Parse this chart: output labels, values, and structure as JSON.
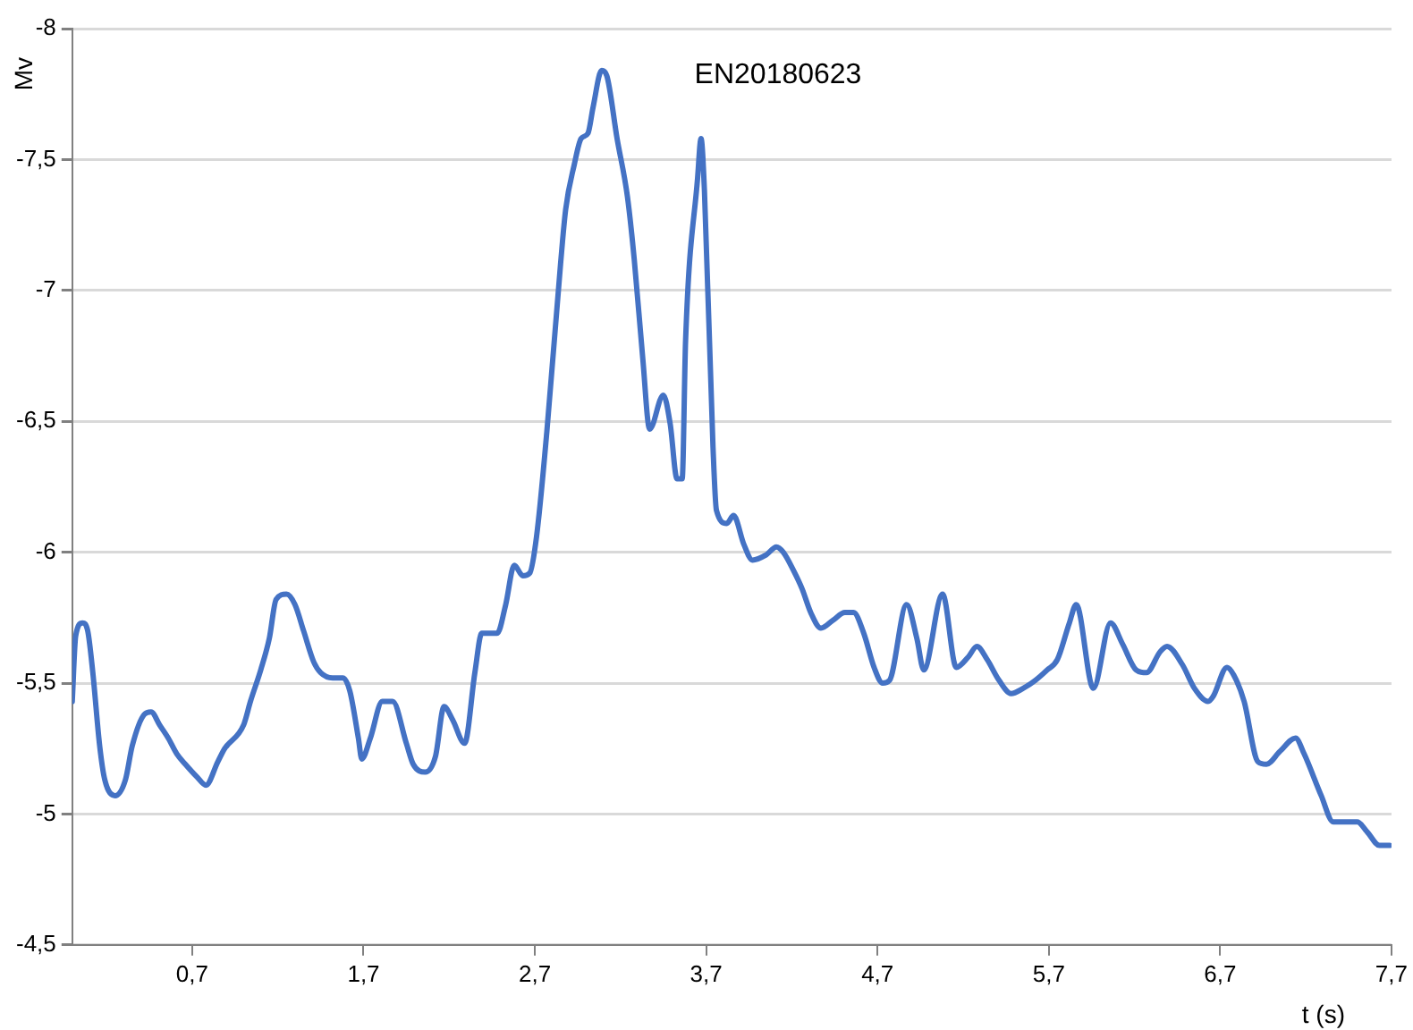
{
  "chart_data": {
    "type": "line",
    "xlabel": "t (s)",
    "ylabel": "Mv",
    "annotations": [
      "EN20180623"
    ],
    "grid": "y",
    "legend": false,
    "marker": "none",
    "line_style": "solid",
    "xlim": [
      0,
      7.7
    ],
    "xticks": [
      {
        "value": 0.7,
        "label": "0,7"
      },
      {
        "value": 1.7,
        "label": "1,7"
      },
      {
        "value": 2.7,
        "label": "2,7"
      },
      {
        "value": 3.7,
        "label": "3,7"
      },
      {
        "value": 4.7,
        "label": "4,7"
      },
      {
        "value": 5.7,
        "label": "5,7"
      },
      {
        "value": 6.7,
        "label": "6,7"
      },
      {
        "value": 7.7,
        "label": "7,7"
      }
    ],
    "ylim": [
      -4.5,
      -8
    ],
    "yticks": [
      {
        "value": -4.5,
        "label": "-4,5"
      },
      -5,
      {
        "value": -5.5,
        "label": "-5,5"
      },
      -6,
      {
        "value": -6.5,
        "label": "-6,5"
      },
      -7,
      {
        "value": -7.5,
        "label": "-7,5"
      },
      -8
    ],
    "series": [
      {
        "color": "#4472c4",
        "x": [
          0,
          0.02,
          0.06,
          0.09,
          0.12,
          0.16,
          0.19,
          0.25,
          0.31,
          0.35,
          0.42,
          0.46,
          0.51,
          0.56,
          0.61,
          0.66,
          0.73,
          0.78,
          0.85,
          0.89,
          1.0,
          1.04,
          1.1,
          1.15,
          1.19,
          1.25,
          1.3,
          1.35,
          1.41,
          1.45,
          1.52,
          1.58,
          1.62,
          1.67,
          1.69,
          1.74,
          1.81,
          1.87,
          1.95,
          1.99,
          2.06,
          2.12,
          2.17,
          2.22,
          2.29,
          2.35,
          2.39,
          2.48,
          2.53,
          2.58,
          2.63,
          2.67,
          2.71,
          2.77,
          2.85,
          2.88,
          2.93,
          2.97,
          3.01,
          3.04,
          3.09,
          3.12,
          3.18,
          3.24,
          3.28,
          3.33,
          3.37,
          3.45,
          3.49,
          3.53,
          3.56,
          3.58,
          3.65,
          3.67,
          3.69,
          3.74,
          3.76,
          3.82,
          3.86,
          3.92,
          3.97,
          4.05,
          4.11,
          4.15,
          4.21,
          4.26,
          4.31,
          4.37,
          4.44,
          4.51,
          4.56,
          4.62,
          4.68,
          4.73,
          4.77,
          4.87,
          4.93,
          4.97,
          5.08,
          5.16,
          5.23,
          5.28,
          5.34,
          5.41,
          5.48,
          5.55,
          5.62,
          5.69,
          5.75,
          5.82,
          5.86,
          5.96,
          6.06,
          6.13,
          6.21,
          6.27,
          6.35,
          6.39,
          6.48,
          6.55,
          6.63,
          6.66,
          6.74,
          6.78,
          6.84,
          6.92,
          6.97,
          7.05,
          7.14,
          7.19,
          7.29,
          7.36,
          7.43,
          7.5,
          7.56,
          7.63,
          7.69
        ],
        "values": [
          -5.43,
          -5.68,
          -5.73,
          -5.7,
          -5.54,
          -5.26,
          -5.13,
          -5.07,
          -5.13,
          -5.26,
          -5.38,
          -5.39,
          -5.34,
          -5.29,
          -5.23,
          -5.19,
          -5.14,
          -5.11,
          -5.2,
          -5.25,
          -5.34,
          -5.43,
          -5.55,
          -5.67,
          -5.82,
          -5.84,
          -5.8,
          -5.7,
          -5.58,
          -5.54,
          -5.52,
          -5.52,
          -5.47,
          -5.29,
          -5.21,
          -5.29,
          -5.43,
          -5.43,
          -5.27,
          -5.19,
          -5.16,
          -5.22,
          -5.41,
          -5.36,
          -5.27,
          -5.54,
          -5.69,
          -5.69,
          -5.8,
          -5.95,
          -5.91,
          -5.92,
          -6.06,
          -6.46,
          -7.1,
          -7.31,
          -7.48,
          -7.58,
          -7.6,
          -7.7,
          -7.84,
          -7.82,
          -7.58,
          -7.36,
          -7.12,
          -6.74,
          -6.47,
          -6.6,
          -6.49,
          -6.28,
          -6.28,
          -6.81,
          -7.43,
          -7.58,
          -7.38,
          -6.4,
          -6.16,
          -6.11,
          -6.14,
          -6.03,
          -5.97,
          -5.99,
          -6.02,
          -6.0,
          -5.93,
          -5.86,
          -5.77,
          -5.71,
          -5.74,
          -5.77,
          -5.77,
          -5.69,
          -5.56,
          -5.5,
          -5.51,
          -5.8,
          -5.67,
          -5.55,
          -5.84,
          -5.56,
          -5.6,
          -5.64,
          -5.59,
          -5.51,
          -5.46,
          -5.48,
          -5.51,
          -5.55,
          -5.59,
          -5.73,
          -5.8,
          -5.48,
          -5.73,
          -5.65,
          -5.55,
          -5.54,
          -5.62,
          -5.64,
          -5.57,
          -5.48,
          -5.43,
          -5.45,
          -5.56,
          -5.53,
          -5.43,
          -5.2,
          -5.19,
          -5.24,
          -5.29,
          -5.23,
          -5.07,
          -4.97,
          -4.97,
          -4.97,
          -4.93,
          -4.88,
          -4.88
        ]
      }
    ]
  }
}
